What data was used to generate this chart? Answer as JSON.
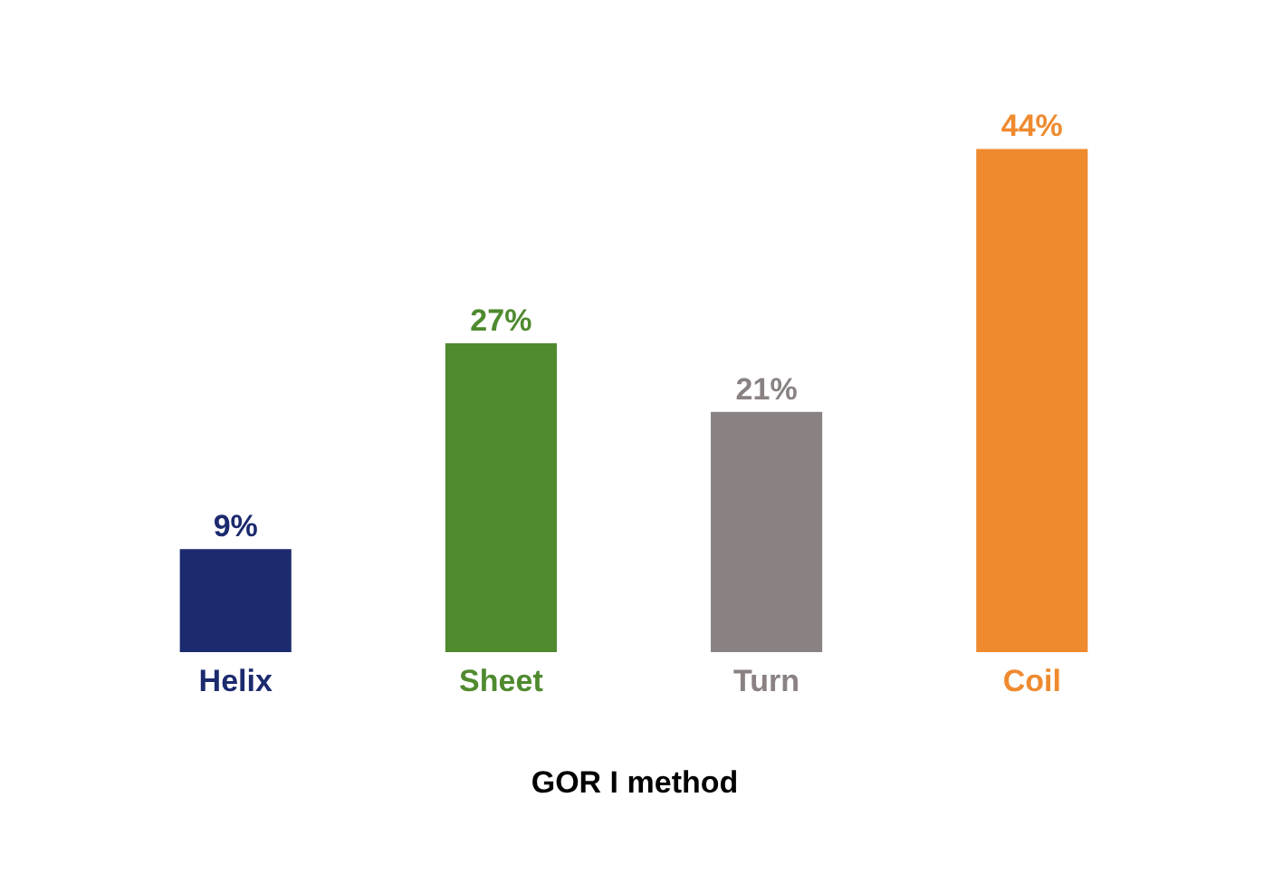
{
  "chart_data": {
    "type": "bar",
    "xlabel": "GOR I method",
    "categories": [
      "Helix",
      "Sheet",
      "Turn",
      "Coil"
    ],
    "values": [
      9,
      27,
      21,
      44
    ],
    "colors": [
      "#1c2a6e",
      "#4f8a2f",
      "#8a8282",
      "#ef8a2f"
    ],
    "value_labels": [
      "9%",
      "27%",
      "21%",
      "44%"
    ],
    "grid": false
  }
}
